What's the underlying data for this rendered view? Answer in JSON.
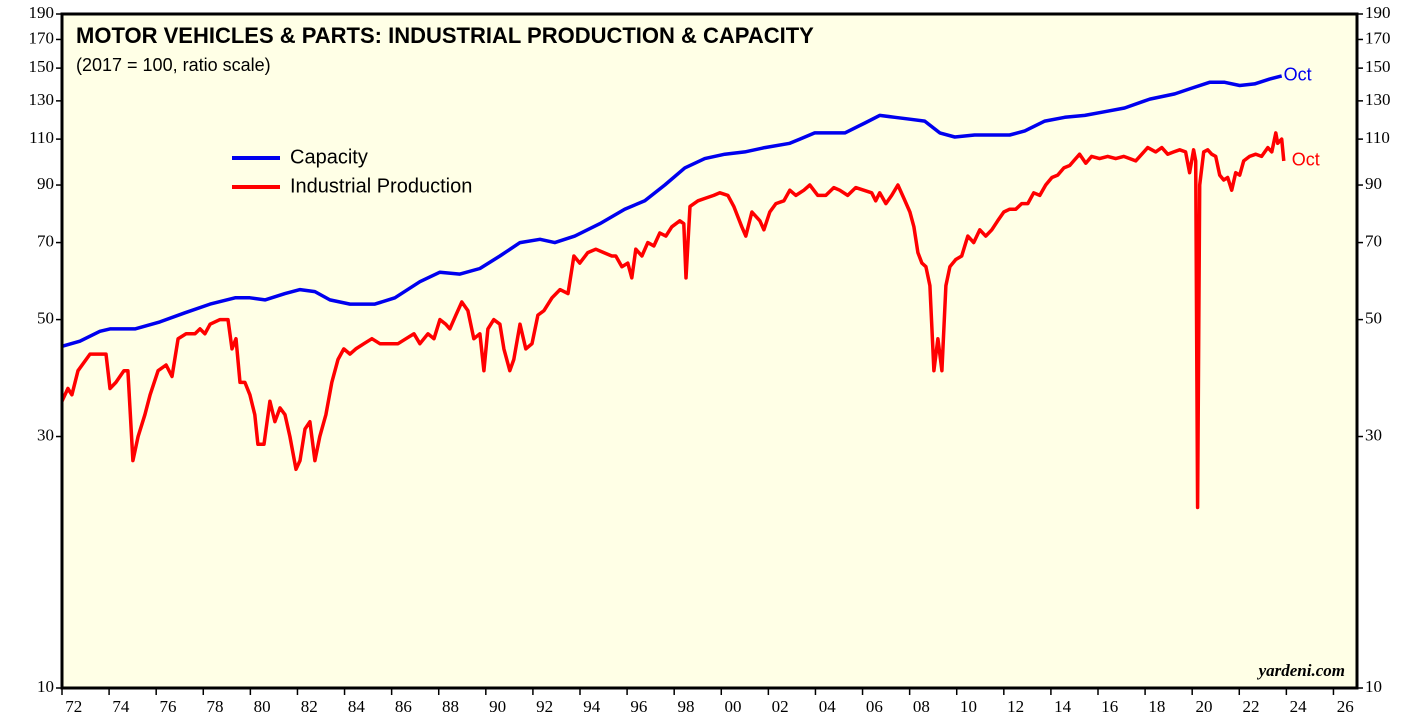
{
  "chart_data": {
    "type": "line",
    "title": "MOTOR VEHICLES & PARTS: INDUSTRIAL PRODUCTION & CAPACITY",
    "subtitle": "(2017 = 100, ratio scale)",
    "source": "yardeni.com",
    "log_scale": true,
    "xlim": [
      1972,
      2027
    ],
    "ylim": [
      10,
      190
    ],
    "yticks": [
      10,
      30,
      50,
      70,
      90,
      110,
      130,
      150,
      170,
      190
    ],
    "xticks": [
      {
        "value": 1972,
        "label": "72"
      },
      {
        "value": 1974,
        "label": "74"
      },
      {
        "value": 1976,
        "label": "76"
      },
      {
        "value": 1978,
        "label": "78"
      },
      {
        "value": 1980,
        "label": "80"
      },
      {
        "value": 1982,
        "label": "82"
      },
      {
        "value": 1984,
        "label": "84"
      },
      {
        "value": 1986,
        "label": "86"
      },
      {
        "value": 1988,
        "label": "88"
      },
      {
        "value": 1990,
        "label": "90"
      },
      {
        "value": 1992,
        "label": "92"
      },
      {
        "value": 1994,
        "label": "94"
      },
      {
        "value": 1996,
        "label": "96"
      },
      {
        "value": 1998,
        "label": "98"
      },
      {
        "value": 2000,
        "label": "00"
      },
      {
        "value": 2002,
        "label": "02"
      },
      {
        "value": 2004,
        "label": "04"
      },
      {
        "value": 2006,
        "label": "06"
      },
      {
        "value": 2008,
        "label": "08"
      },
      {
        "value": 2010,
        "label": "10"
      },
      {
        "value": 2012,
        "label": "12"
      },
      {
        "value": 2014,
        "label": "14"
      },
      {
        "value": 2016,
        "label": "16"
      },
      {
        "value": 2018,
        "label": "18"
      },
      {
        "value": 2020,
        "label": "20"
      },
      {
        "value": 2022,
        "label": "22"
      },
      {
        "value": 2024,
        "label": "24"
      },
      {
        "value": 2026,
        "label": "26"
      }
    ],
    "series": [
      {
        "name": "Capacity",
        "color": "#0000ee",
        "x": [
          1972.0,
          1972.76,
          1973.61,
          1974.04,
          1975.1,
          1976.16,
          1977.22,
          1978.29,
          1979.35,
          1979.98,
          1980.62,
          1981.47,
          1982.11,
          1982.74,
          1983.38,
          1984.23,
          1985.29,
          1986.14,
          1987.2,
          1988.05,
          1988.9,
          1989.75,
          1990.6,
          1991.45,
          1992.3,
          1992.93,
          1993.78,
          1994.84,
          1995.9,
          1996.75,
          1997.6,
          1998.45,
          1999.3,
          2000.15,
          2001.0,
          2001.85,
          2002.91,
          2003.34,
          2003.97,
          2004.61,
          2005.25,
          2006.1,
          2006.73,
          2007.37,
          2008.01,
          2008.64,
          2009.28,
          2009.92,
          2010.76,
          2011.61,
          2012.25,
          2012.89,
          2013.74,
          2014.59,
          2015.44,
          2016.29,
          2017.13,
          2018.2,
          2019.26,
          2019.89,
          2020.74,
          2021.38,
          2022.02,
          2022.65,
          2023.29,
          2023.8
        ],
        "values": [
          44.5,
          45.5,
          47.5,
          48,
          48,
          49.5,
          51.5,
          53.5,
          55,
          55,
          54.5,
          56,
          57,
          56.5,
          54.5,
          53.5,
          53.5,
          55,
          59,
          61.5,
          61,
          62.5,
          66,
          70,
          71,
          70,
          72,
          76,
          81,
          84,
          90,
          97,
          101,
          103,
          104,
          106,
          108,
          110,
          113,
          113,
          113,
          118,
          122,
          121,
          120,
          119,
          113,
          111,
          112,
          112,
          112,
          114,
          119,
          121,
          122,
          124,
          126,
          131,
          134,
          137,
          141,
          141,
          139,
          140,
          143,
          145
        ]
      },
      {
        "name": "Industrial Production",
        "color": "#ff0000",
        "x": [
          1972.0,
          1972.25,
          1972.42,
          1972.68,
          1973.19,
          1973.61,
          1973.87,
          1974.04,
          1974.29,
          1974.63,
          1974.8,
          1975.01,
          1975.23,
          1975.52,
          1975.74,
          1976.08,
          1976.42,
          1976.67,
          1976.93,
          1977.27,
          1977.65,
          1977.86,
          1978.07,
          1978.29,
          1978.71,
          1979.05,
          1979.22,
          1979.39,
          1979.56,
          1979.77,
          1979.98,
          1980.19,
          1980.32,
          1980.58,
          1980.83,
          1981.04,
          1981.26,
          1981.47,
          1981.68,
          1981.94,
          1982.11,
          1982.32,
          1982.53,
          1982.74,
          1982.95,
          1983.21,
          1983.46,
          1983.72,
          1983.97,
          1984.23,
          1984.48,
          1984.82,
          1985.16,
          1985.5,
          1985.93,
          1986.27,
          1986.61,
          1986.95,
          1987.2,
          1987.54,
          1987.8,
          1988.05,
          1988.3,
          1988.47,
          1988.73,
          1988.98,
          1989.24,
          1989.49,
          1989.75,
          1989.92,
          1990.09,
          1990.34,
          1990.6,
          1990.77,
          1991.02,
          1991.19,
          1991.45,
          1991.7,
          1991.96,
          1992.21,
          1992.47,
          1992.81,
          1993.15,
          1993.49,
          1993.74,
          1993.99,
          1994.33,
          1994.67,
          1995.01,
          1995.35,
          1995.52,
          1995.78,
          1996.03,
          1996.2,
          1996.37,
          1996.63,
          1996.88,
          1997.14,
          1997.39,
          1997.65,
          1997.9,
          1998.24,
          1998.41,
          1998.5,
          1998.67,
          1999.01,
          1999.34,
          1999.68,
          1999.94,
          2000.28,
          2000.53,
          2000.87,
          2001.04,
          2001.3,
          2001.64,
          2001.81,
          2002.06,
          2002.32,
          2002.66,
          2002.91,
          2003.17,
          2003.51,
          2003.76,
          2004.1,
          2004.44,
          2004.78,
          2005.03,
          2005.37,
          2005.71,
          2006.05,
          2006.39,
          2006.56,
          2006.73,
          2006.99,
          2007.24,
          2007.5,
          2007.75,
          2008.01,
          2008.18,
          2008.35,
          2008.52,
          2008.69,
          2008.86,
          2009.03,
          2009.2,
          2009.37,
          2009.54,
          2009.71,
          2009.96,
          2010.21,
          2010.47,
          2010.72,
          2010.98,
          2011.23,
          2011.49,
          2011.74,
          2012.0,
          2012.25,
          2012.51,
          2012.76,
          2013.02,
          2013.27,
          2013.53,
          2013.78,
          2014.04,
          2014.29,
          2014.55,
          2014.8,
          2014.97,
          2015.22,
          2015.48,
          2015.73,
          2016.07,
          2016.41,
          2016.75,
          2017.09,
          2017.35,
          2017.6,
          2017.86,
          2018.11,
          2018.45,
          2018.71,
          2018.96,
          2019.22,
          2019.47,
          2019.72,
          2019.89,
          2020.06,
          2020.15,
          2020.23,
          2020.32,
          2020.49,
          2020.66,
          2020.83,
          2021.0,
          2021.17,
          2021.34,
          2021.51,
          2021.68,
          2021.85,
          2022.02,
          2022.19,
          2022.44,
          2022.7,
          2022.95,
          2023.21,
          2023.38,
          2023.55,
          2023.63,
          2023.8,
          2023.89
        ],
        "values": [
          35,
          37,
          36,
          40,
          43,
          43,
          43,
          37,
          38,
          40,
          40,
          27,
          30,
          33,
          36,
          40,
          41,
          39,
          46,
          47,
          47,
          48,
          47,
          49,
          50,
          50,
          44,
          46,
          38,
          38,
          36,
          33,
          29,
          29,
          35,
          32,
          34,
          33,
          30,
          26,
          27,
          31,
          32,
          27,
          30,
          33,
          38,
          42,
          44,
          43,
          44,
          45,
          46,
          45,
          45,
          45,
          46,
          47,
          45,
          47,
          46,
          50,
          49,
          48,
          51,
          54,
          52,
          46,
          47,
          40,
          48,
          50,
          49,
          44,
          40,
          42,
          49,
          44,
          45,
          51,
          52,
          55,
          57,
          56,
          66,
          64,
          67,
          68,
          67,
          66,
          66,
          63,
          64,
          60,
          68,
          66,
          70,
          69,
          73,
          72,
          75,
          77,
          76,
          60,
          82,
          84,
          85,
          86,
          87,
          86,
          82,
          75,
          72,
          80,
          77,
          74,
          80,
          83,
          84,
          88,
          86,
          88,
          90,
          86,
          86,
          89,
          88,
          86,
          89,
          88,
          87,
          84,
          87,
          83,
          86,
          90,
          85,
          80,
          75,
          67,
          64,
          63,
          58,
          40,
          46,
          40,
          58,
          63,
          65,
          66,
          72,
          70,
          74,
          72,
          74,
          77,
          80,
          81,
          81,
          83,
          83,
          87,
          86,
          90,
          93,
          94,
          97,
          98,
          100,
          103,
          99,
          102,
          101,
          102,
          101,
          102,
          101,
          100,
          103,
          106,
          104,
          106,
          103,
          104,
          105,
          104,
          95,
          105,
          100,
          22,
          90,
          104,
          105,
          103,
          102,
          94,
          92,
          93,
          88,
          95,
          94,
          100,
          102,
          103,
          102,
          106,
          104,
          113,
          108,
          110,
          100
        ]
      }
    ],
    "annotations": [
      {
        "text": "Oct",
        "series": 0
      },
      {
        "text": "Oct",
        "series": 1
      }
    ]
  }
}
